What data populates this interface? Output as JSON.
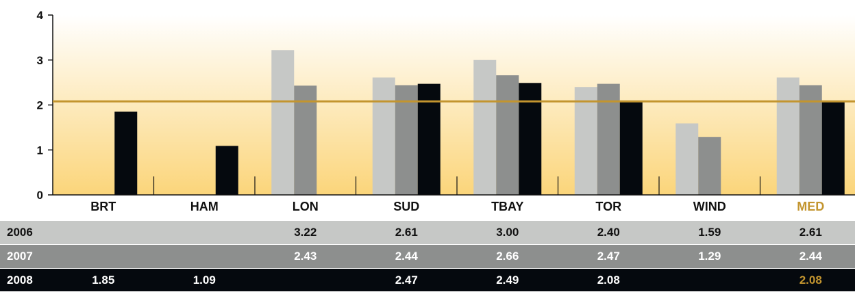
{
  "chart_data": {
    "type": "bar",
    "categories": [
      "BRT",
      "HAM",
      "LON",
      "SUD",
      "TBAY",
      "TOR",
      "WIND",
      "MED"
    ],
    "series": [
      {
        "name": "2006",
        "values": [
          null,
          null,
          3.22,
          2.61,
          3.0,
          2.4,
          1.59,
          2.61
        ]
      },
      {
        "name": "2007",
        "values": [
          null,
          null,
          2.43,
          2.44,
          2.66,
          2.47,
          1.29,
          2.44
        ]
      },
      {
        "name": "2008",
        "values": [
          1.85,
          1.09,
          null,
          2.47,
          2.49,
          2.08,
          null,
          2.08
        ]
      }
    ],
    "ylim": [
      0,
      4
    ],
    "yticks": [
      "0",
      "1",
      "2",
      "3",
      "4"
    ],
    "reference_line": 2.08,
    "highlight_category": "MED",
    "title": "",
    "xlabel": "",
    "ylabel": ""
  },
  "table": {
    "rows": [
      {
        "label": "2006",
        "cells": [
          "",
          "",
          "3.22",
          "2.61",
          "3.00",
          "2.40",
          "1.59",
          "2.61"
        ]
      },
      {
        "label": "2007",
        "cells": [
          "",
          "",
          "2.43",
          "2.44",
          "2.66",
          "2.47",
          "1.29",
          "2.44"
        ]
      },
      {
        "label": "2008",
        "cells": [
          "1.85",
          "1.09",
          "",
          "2.47",
          "2.49",
          "2.08",
          "",
          "2.08"
        ]
      }
    ]
  },
  "colors": {
    "series": [
      "#c6c8c6",
      "#8d8f8e",
      "#05090e"
    ],
    "reference_line": "#c3952f",
    "highlight": "#c3952f",
    "background_top": "#ffffff",
    "background_bottom": "#fbd57a",
    "row_backgrounds": [
      "#c6c8c6",
      "#8d8f8e",
      "#05090e"
    ],
    "row_text": [
      "#111111",
      "#ffffff",
      "#ffffff"
    ]
  }
}
